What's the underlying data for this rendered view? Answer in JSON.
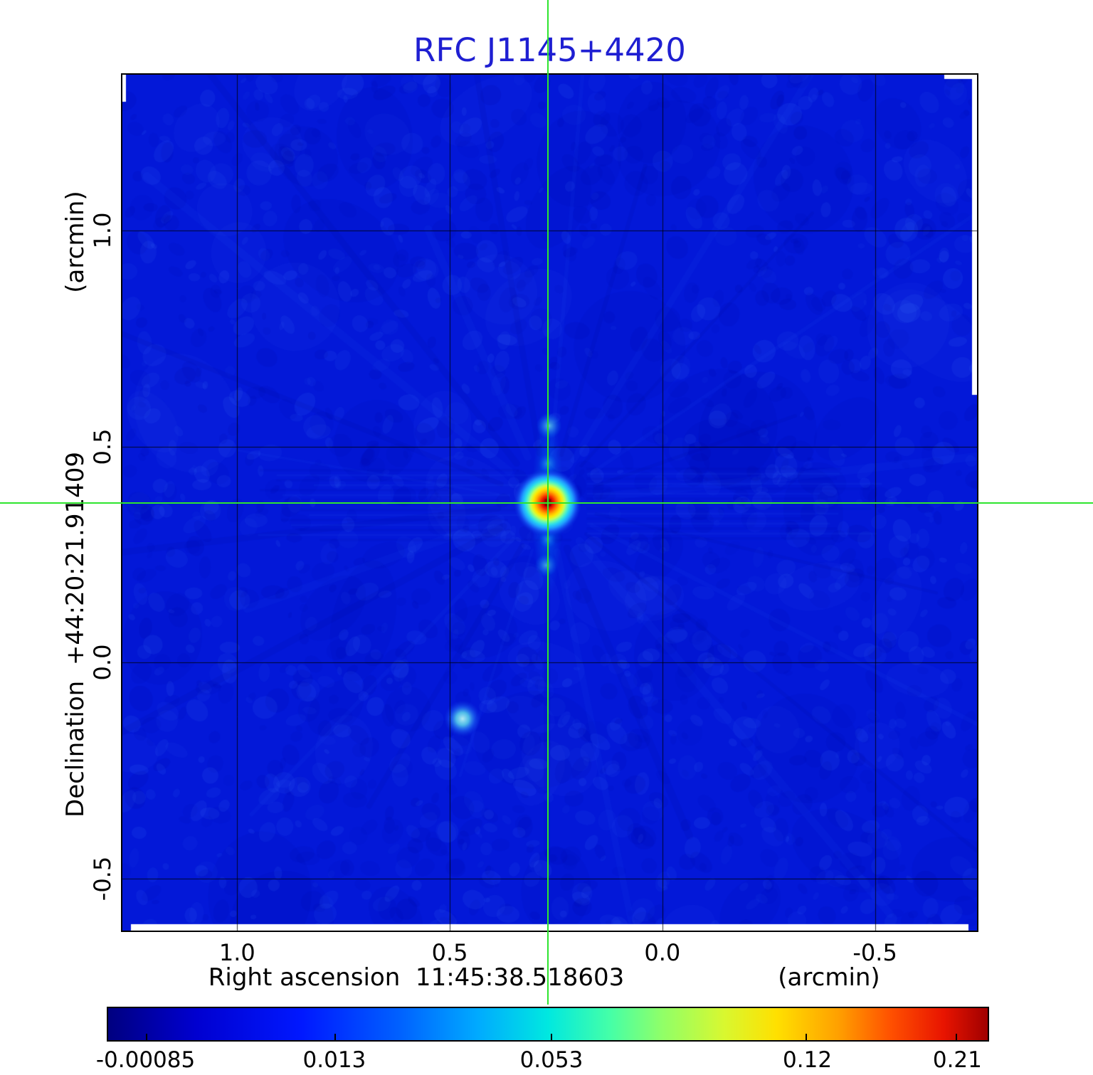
{
  "figure": {
    "title": "RFC J1145+4420",
    "title_color": "#1f1fd2"
  },
  "chart_data": {
    "type": "heatmap",
    "title": "RFC J1145+4420",
    "axes": {
      "x_label": "Right ascension  11:45:38.518603",
      "x_unit": "(arcmin)",
      "y_label": "Declination  +44:20:21.91409",
      "y_unit": "(arcmin)",
      "x_tick_labels": [
        "1.0",
        "0.5",
        "0.0",
        "-0.5"
      ],
      "x_tick_values": [
        1.0,
        0.5,
        0.0,
        -0.5
      ],
      "y_tick_labels": [
        "1.0",
        "0.5",
        "0.0",
        "-0.5"
      ],
      "y_tick_values": [
        1.0,
        0.5,
        0.0,
        -0.5
      ],
      "x_range_arcmin": [
        1.27,
        -0.74
      ],
      "y_range_arcmin": [
        1.36,
        -0.62
      ],
      "grid": true,
      "grid_color": "#000000"
    },
    "image": {
      "background_color": "#0318d8",
      "background_intensity": 0.0
    },
    "sources": [
      {
        "name": "primary-source",
        "x_arcmin": 0.27,
        "y_arcmin": 0.37,
        "peak_intensity": 0.21
      },
      {
        "name": "secondary-source",
        "x_arcmin": 0.47,
        "y_arcmin": -0.13,
        "peak_intensity": 0.02
      }
    ],
    "crosshair": {
      "x_arcmin": 0.27,
      "y_arcmin": 0.37,
      "color": "#2ee52e"
    },
    "colorbar": {
      "tick_labels": [
        "-0.00085",
        "0.013",
        "0.053",
        "0.12",
        "0.21"
      ],
      "tick_positions": [
        0.044,
        0.258,
        0.504,
        0.794,
        0.964
      ],
      "gradient_stops": [
        {
          "pos": 0.0,
          "color": "#000080"
        },
        {
          "pos": 0.1,
          "color": "#0000d0"
        },
        {
          "pos": 0.22,
          "color": "#0018ff"
        },
        {
          "pos": 0.33,
          "color": "#0060ff"
        },
        {
          "pos": 0.42,
          "color": "#00aaff"
        },
        {
          "pos": 0.5,
          "color": "#00e8e0"
        },
        {
          "pos": 0.57,
          "color": "#44ffa8"
        },
        {
          "pos": 0.63,
          "color": "#90ff68"
        },
        {
          "pos": 0.7,
          "color": "#d8f830"
        },
        {
          "pos": 0.76,
          "color": "#ffe000"
        },
        {
          "pos": 0.83,
          "color": "#ffa000"
        },
        {
          "pos": 0.89,
          "color": "#ff5000"
        },
        {
          "pos": 0.95,
          "color": "#e81400"
        },
        {
          "pos": 1.0,
          "color": "#a00000"
        }
      ]
    }
  }
}
